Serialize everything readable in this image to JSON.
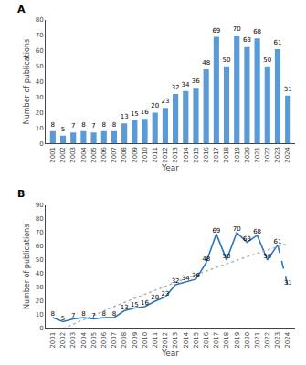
{
  "chart_data": [
    {
      "type": "bar",
      "title": "A",
      "categories": [
        "2001",
        "2002",
        "2003",
        "2004",
        "2005",
        "2006",
        "2007",
        "2008",
        "2009",
        "2010",
        "2011",
        "2012",
        "2013",
        "2014",
        "2015",
        "2016",
        "2017",
        "2018",
        "2019",
        "2020",
        "2021",
        "2022",
        "2023",
        "2024"
      ],
      "values": [
        8,
        5,
        7,
        8,
        7,
        8,
        8,
        13,
        15,
        16,
        20,
        23,
        32,
        34,
        36,
        48,
        69,
        50,
        70,
        63,
        68,
        50,
        61,
        31
      ],
      "color": "#5b9bd5",
      "xlabel": "Year",
      "ylabel": "Number of publications",
      "ylim": [
        0,
        80
      ],
      "yticks": [
        0,
        10,
        20,
        30,
        40,
        50,
        60,
        70,
        80
      ],
      "data_labels": true,
      "grid": false
    },
    {
      "type": "line",
      "title": "B",
      "categories": [
        "2001",
        "2002",
        "2003",
        "2004",
        "2005",
        "2006",
        "2007",
        "2008",
        "2009",
        "2010",
        "2011",
        "2012",
        "2013",
        "2014",
        "2015",
        "2016",
        "2017",
        "2018",
        "2019",
        "2020",
        "2021",
        "2022",
        "2023",
        "2024"
      ],
      "values": [
        8,
        5,
        7,
        8,
        7,
        8,
        8,
        13,
        15,
        16,
        20,
        23,
        32,
        34,
        36,
        48,
        69,
        50,
        70,
        63,
        68,
        50,
        61,
        31
      ],
      "color": "#2e75b6",
      "series": [
        {
          "values": [
            null,
            0.01,
            3.3,
            6.55,
            9.75,
            12.91,
            16.02,
            19.09,
            22.11,
            25.08,
            28.02,
            30.9,
            33.74,
            36.54,
            39.29,
            42,
            44.66,
            47.28,
            49.85,
            52.38,
            54.86,
            57.29,
            59.68,
            62.03
          ],
          "color": "#aaaaaa",
          "line_style": "dotted"
        }
      ],
      "xlabel": "Year",
      "ylabel": "Number of publications",
      "ylim": [
        0,
        90
      ],
      "yticks": [
        0,
        10,
        20,
        30,
        40,
        50,
        60,
        70,
        80,
        90
      ],
      "data_labels": true,
      "grid": false
    }
  ]
}
